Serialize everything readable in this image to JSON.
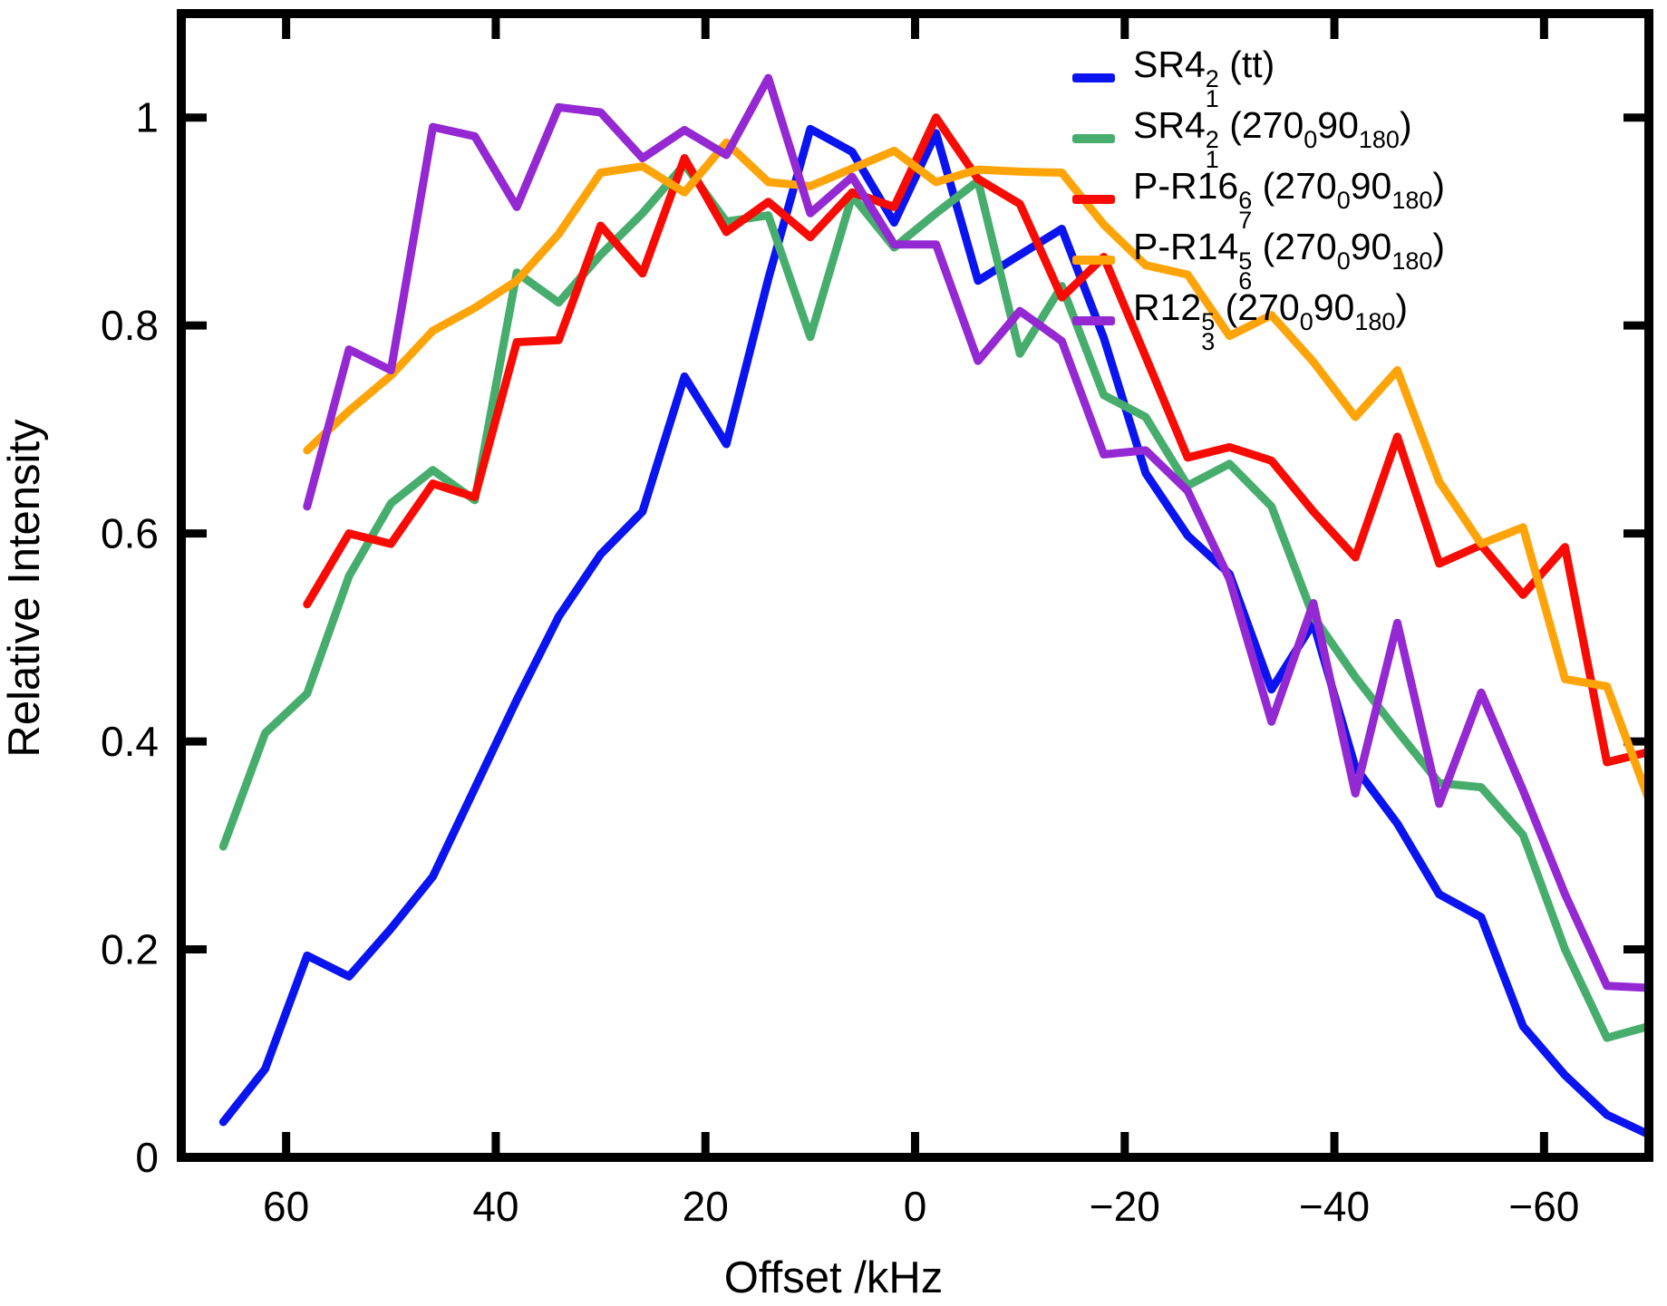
{
  "page": {
    "background": "#ffffff"
  },
  "axis_labels": {
    "x": "Offset /kHz",
    "y": "Relative Intensity"
  },
  "chart_data": {
    "type": "line",
    "title": "",
    "xlabel": "Offset /kHz",
    "ylabel": "Relative Intensity",
    "x_axis_reversed": true,
    "grid": false,
    "legend_position": "upper right",
    "xlim": [
      70,
      -70
    ],
    "ylim": [
      0,
      1.1
    ],
    "xticks": [
      60,
      40,
      20,
      0,
      -20,
      -40,
      -60
    ],
    "xtick_labels": [
      "60",
      "40",
      "20",
      "0",
      "−20",
      "−40",
      "−60"
    ],
    "yticks": [
      0,
      0.2,
      0.4,
      0.6,
      0.8,
      1
    ],
    "ytick_labels": [
      "0",
      "0.2",
      "0.4",
      "0.6",
      "0.8",
      "1"
    ],
    "x": [
      66,
      62,
      58,
      54,
      50,
      46,
      42,
      38,
      34,
      30,
      26,
      22,
      18,
      14,
      10,
      6,
      2,
      -2,
      -6,
      -10,
      -14,
      -18,
      -22,
      -26,
      -30,
      -34,
      -38,
      -42,
      -46,
      -50,
      -54,
      -58,
      -62,
      -66,
      -70
    ],
    "series": [
      {
        "name": "SR4_1^2 (tt)",
        "color": "#0a14f0",
        "values": [
          0.034,
          0.085,
          0.194,
          0.174,
          0.22,
          0.27,
          0.355,
          0.44,
          0.52,
          0.58,
          0.621,
          0.751,
          0.686,
          0.845,
          0.989,
          0.967,
          0.899,
          0.985,
          0.843,
          0.868,
          0.893,
          0.788,
          0.658,
          0.598,
          0.561,
          0.45,
          0.514,
          0.375,
          0.321,
          0.253,
          0.231,
          0.126,
          0.079,
          0.041,
          0.022
        ]
      },
      {
        "name": "SR4_1^2 (270_0 90_180)",
        "color": "#47ad6d",
        "values": [
          0.299,
          0.408,
          0.446,
          0.559,
          0.629,
          0.661,
          0.632,
          0.851,
          0.822,
          0.868,
          0.908,
          0.955,
          0.9,
          0.906,
          0.789,
          0.925,
          0.875,
          0.908,
          0.939,
          0.773,
          0.838,
          0.733,
          0.712,
          0.646,
          0.667,
          0.626,
          0.52,
          0.462,
          0.41,
          0.36,
          0.356,
          0.31,
          0.2,
          0.115,
          0.126
        ]
      },
      {
        "name": "P-R16_7^6 (270_0 90_180)",
        "color": "#f80b02",
        "values": [
          null,
          null,
          0.532,
          0.6,
          0.59,
          0.648,
          0.635,
          0.784,
          0.786,
          0.896,
          0.85,
          0.961,
          0.89,
          0.919,
          0.885,
          0.928,
          0.914,
          1.0,
          0.941,
          0.917,
          0.827,
          0.866,
          0.77,
          0.673,
          0.683,
          0.67,
          0.621,
          0.577,
          0.693,
          0.571,
          0.589,
          0.541,
          0.587,
          0.38,
          0.39
        ]
      },
      {
        "name": "P-R14_6^5 (270_0 90_180)",
        "color": "#ffa408",
        "values": [
          null,
          null,
          0.68,
          0.718,
          0.752,
          0.795,
          0.817,
          0.843,
          0.888,
          0.947,
          0.953,
          0.928,
          0.976,
          0.938,
          0.934,
          0.951,
          0.968,
          0.938,
          0.95,
          0.948,
          0.947,
          0.897,
          0.858,
          0.849,
          0.79,
          0.81,
          0.765,
          0.712,
          0.757,
          0.65,
          0.59,
          0.606,
          0.46,
          0.453,
          0.344
        ]
      },
      {
        "name": "R12_3^5 (270_0 90_180)",
        "color": "#9428d2",
        "values": [
          null,
          null,
          0.626,
          0.777,
          0.757,
          0.991,
          0.982,
          0.914,
          1.01,
          1.005,
          0.961,
          0.988,
          0.964,
          1.038,
          0.908,
          0.943,
          0.878,
          0.878,
          0.766,
          0.814,
          0.785,
          0.676,
          0.68,
          0.641,
          0.556,
          0.419,
          0.533,
          0.35,
          0.514,
          0.34,
          0.447,
          0.353,
          0.253,
          0.165,
          0.163
        ]
      }
    ]
  },
  "legend": {
    "items": [
      {
        "color": "#0a14f0",
        "parts": [
          {
            "text": "SR4"
          },
          {
            "stack": {
              "sup": "2",
              "sub": "1"
            }
          },
          {
            "text": " (tt)"
          }
        ]
      },
      {
        "color": "#47ad6d",
        "parts": [
          {
            "text": "SR4"
          },
          {
            "stack": {
              "sup": "2",
              "sub": "1"
            }
          },
          {
            "text": " (270"
          },
          {
            "sub": "0"
          },
          {
            "text": "90"
          },
          {
            "sub": "180"
          },
          {
            "text": ")"
          }
        ]
      },
      {
        "color": "#f80b02",
        "parts": [
          {
            "text": "P-R16"
          },
          {
            "stack": {
              "sup": "6",
              "sub": "7"
            }
          },
          {
            "text": " (270"
          },
          {
            "sub": "0"
          },
          {
            "text": "90"
          },
          {
            "sub": "180"
          },
          {
            "text": ")"
          }
        ]
      },
      {
        "color": "#ffa408",
        "parts": [
          {
            "text": "P-R14"
          },
          {
            "stack": {
              "sup": "5",
              "sub": "6"
            }
          },
          {
            "text": " (270"
          },
          {
            "sub": "0"
          },
          {
            "text": "90"
          },
          {
            "sub": "180"
          },
          {
            "text": ")"
          }
        ]
      },
      {
        "color": "#9428d2",
        "parts": [
          {
            "text": "R12"
          },
          {
            "stack": {
              "sup": "5",
              "sub": "3"
            }
          },
          {
            "text": " (270"
          },
          {
            "sub": "0"
          },
          {
            "text": "90"
          },
          {
            "sub": "180"
          },
          {
            "text": ")"
          }
        ]
      }
    ]
  }
}
